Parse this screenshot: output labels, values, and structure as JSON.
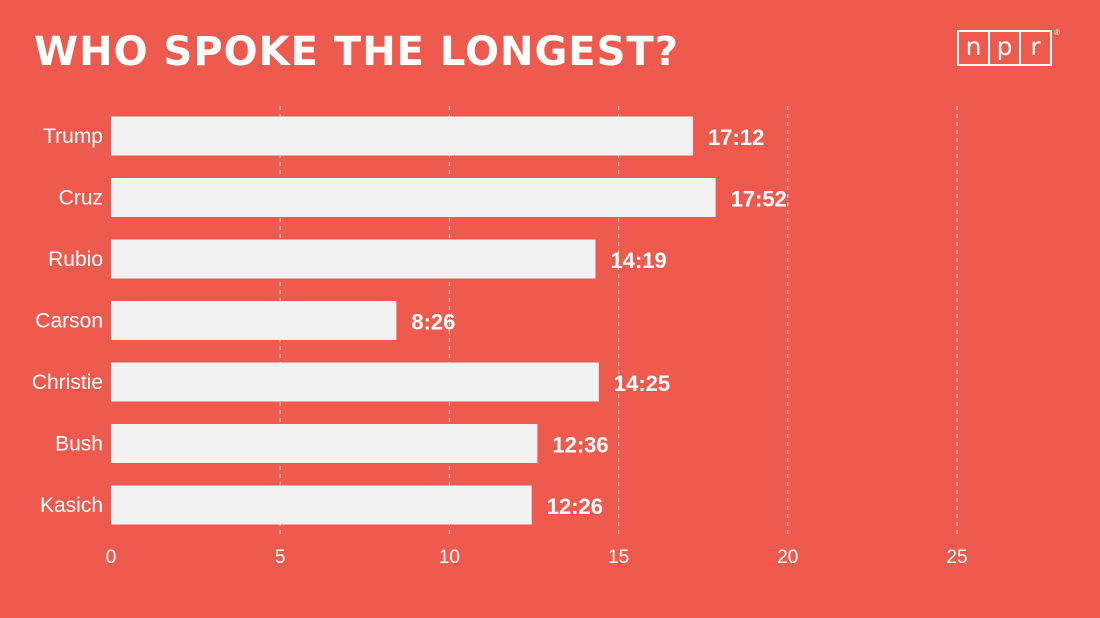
{
  "header": {
    "title": "WHO SPOKE THE LONGEST?",
    "logo_letters": [
      "n",
      "p",
      "r"
    ],
    "logo_mark": "®"
  },
  "colors": {
    "background": "#EF5A4F",
    "bar": "#F2F2F2",
    "text": "#FFFFFF"
  },
  "chart_data": {
    "type": "bar",
    "orientation": "horizontal",
    "title": "WHO SPOKE THE LONGEST?",
    "categories": [
      "Trump",
      "Cruz",
      "Rubio",
      "Carson",
      "Christie",
      "Bush",
      "Kasich"
    ],
    "values": [
      17.2,
      17.867,
      14.317,
      8.433,
      14.417,
      12.6,
      12.433
    ],
    "value_labels": [
      "17:12",
      "17:52",
      "14:19",
      "8:26",
      "14:25",
      "12:36",
      "12:26"
    ],
    "xlim": [
      0,
      25
    ],
    "xticks": [
      0,
      5,
      10,
      15,
      20,
      25
    ],
    "grid": "vertical dashed",
    "xlabel": "",
    "ylabel": ""
  }
}
